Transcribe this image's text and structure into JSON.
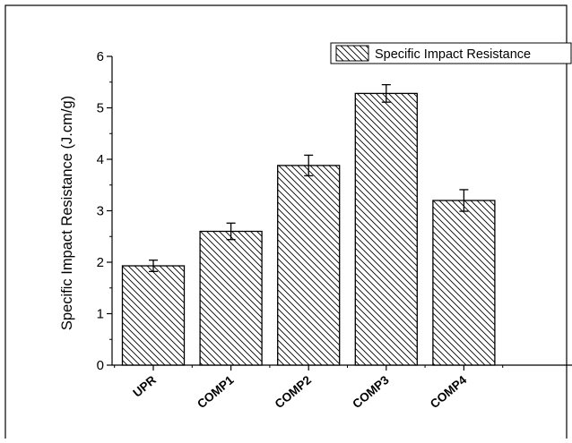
{
  "chart_data": {
    "type": "bar",
    "categories": [
      "UPR",
      "COMP1",
      "COMP2",
      "COMP3",
      "COMP4"
    ],
    "series": [
      {
        "name": "Specific Impact Resistance",
        "values": [
          1.93,
          2.6,
          3.88,
          5.28,
          3.2
        ],
        "errors": [
          0.11,
          0.16,
          0.2,
          0.17,
          0.21
        ]
      }
    ],
    "xlabel": "",
    "ylabel": "Specific Impact Resistance (J.cm/g)",
    "ylim": [
      0,
      6
    ],
    "yticks": [
      0,
      1,
      2,
      3,
      4,
      5,
      6
    ],
    "grid": false,
    "legend_position": "top-right",
    "bar_fill": "diagonal-hatch",
    "bar_color": "#000000",
    "background": "#ffffff"
  }
}
